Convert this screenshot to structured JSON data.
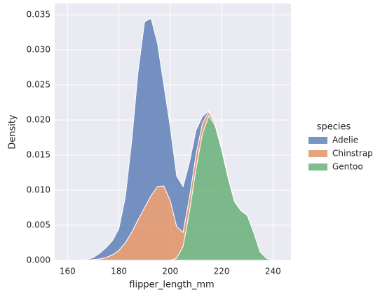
{
  "chart_data": {
    "type": "stacked_area",
    "xlabel": "flipper_length_mm",
    "ylabel": "Density",
    "legend_title": "species",
    "legend_position": "right",
    "x": [
      165,
      167.5,
      170,
      172.5,
      175,
      177.5,
      180,
      182.5,
      185,
      187.5,
      190,
      192.5,
      195,
      197.5,
      200,
      202.5,
      205,
      207.5,
      210,
      212.5,
      215,
      217.5,
      220,
      222.5,
      225,
      227.5,
      230,
      232.5,
      235,
      237.5,
      240
    ],
    "series": [
      {
        "name": "Adelie",
        "color": "#4c72b0",
        "values": [
          0,
          0.0001,
          0.0003,
          0.0008,
          0.0014,
          0.002,
          0.0031,
          0.0065,
          0.013,
          0.0212,
          0.0265,
          0.0253,
          0.0205,
          0.0144,
          0.0105,
          0.0072,
          0.0065,
          0.005,
          0.0035,
          0.001,
          0.0001,
          0,
          0,
          0,
          0,
          0,
          0,
          0,
          0,
          0,
          0
        ]
      },
      {
        "name": "Chinstrap",
        "color": "#dd8452",
        "values": [
          0,
          0,
          0.0001,
          0.0002,
          0.0004,
          0.0008,
          0.0014,
          0.0025,
          0.004,
          0.0058,
          0.0075,
          0.0092,
          0.0105,
          0.0106,
          0.0085,
          0.0045,
          0.002,
          0.002,
          0.002,
          0.0015,
          0.0006,
          0.0003,
          0.0002,
          0.0002,
          0.0001,
          0.0001,
          0.0001,
          0,
          0,
          0,
          0
        ]
      },
      {
        "name": "Gentoo",
        "color": "#55a868",
        "values": [
          0,
          0,
          0,
          0,
          0,
          0,
          0,
          0,
          0,
          0,
          0,
          0,
          0,
          0,
          0,
          0.0003,
          0.002,
          0.007,
          0.013,
          0.018,
          0.0206,
          0.0192,
          0.0158,
          0.0118,
          0.0084,
          0.0071,
          0.0064,
          0.004,
          0.0012,
          0.0003,
          0
        ]
      }
    ],
    "xlim": [
      155,
      247
    ],
    "ylim": [
      0,
      0.0366
    ],
    "xticks": [
      160,
      180,
      200,
      220,
      240
    ],
    "yticks": [
      {
        "value": 0,
        "label": "0.000"
      },
      {
        "value": 0.005,
        "label": "0.005"
      },
      {
        "value": 0.01,
        "label": "0.010"
      },
      {
        "value": 0.015,
        "label": "0.015"
      },
      {
        "value": 0.02,
        "label": "0.020"
      },
      {
        "value": 0.025,
        "label": "0.025"
      },
      {
        "value": 0.03,
        "label": "0.030"
      },
      {
        "value": 0.035,
        "label": "0.035"
      }
    ],
    "grid": true
  }
}
